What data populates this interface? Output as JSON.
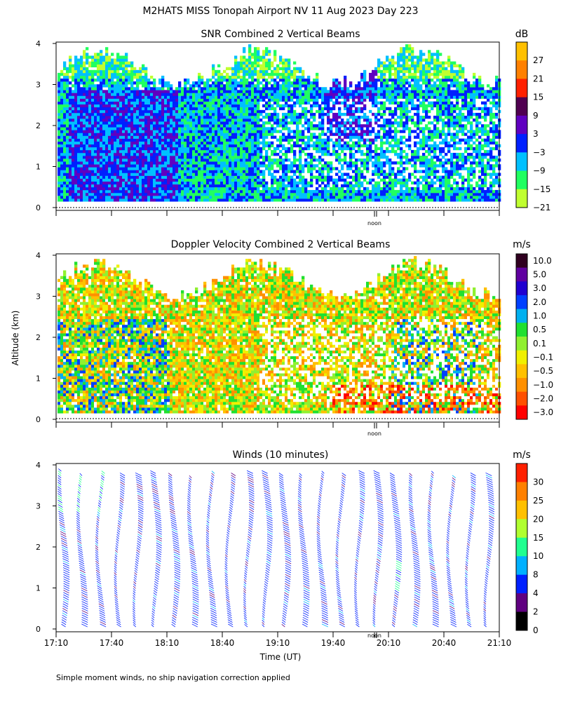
{
  "figure": {
    "title": "M2HATS MISS Tonopah Airport NV  11 Aug 2023 Day 223",
    "ylabel": "Altitude (km)",
    "xlabel": "Time (UT)",
    "footnote": "Simple moment winds, no ship navigation correction applied",
    "noon_label": "noon"
  },
  "chart_data": [
    {
      "type": "heatmap",
      "title": "SNR Combined 2 Vertical Beams",
      "ylabel": "Altitude (km)",
      "ylim": [
        0,
        4
      ],
      "yticks": [
        "0",
        "1",
        "2",
        "3",
        "4"
      ],
      "xlim": [
        "17:10",
        "21:10"
      ],
      "colorbar": {
        "unit": "dB",
        "labels": [
          "27",
          "21",
          "15",
          "9",
          "3",
          "−3",
          "−9",
          "−15",
          "−21"
        ],
        "colors": [
          "#ffc000",
          "#ff8000",
          "#ff2000",
          "#500050",
          "#6000c0",
          "#0020ff",
          "#00c0ff",
          "#20ff60",
          "#c0ff30"
        ]
      },
      "description": "Strongest SNR (-3 to 9 dB) below 3 km from 17:20 to 18:20; weaker values (-15 to -21 dB) near 3.5 km top; data gaps in mid levels after 19:10"
    },
    {
      "type": "heatmap",
      "title": "Doppler Velocity Combined 2 Vertical Beams",
      "ylabel": "Altitude (km)",
      "ylim": [
        0,
        4
      ],
      "yticks": [
        "0",
        "1",
        "2",
        "3",
        "4"
      ],
      "xlim": [
        "17:10",
        "21:10"
      ],
      "colorbar": {
        "unit": "m/s",
        "labels": [
          "10.0",
          "5.0",
          "3.0",
          "2.0",
          "1.0",
          "0.5",
          "0.1",
          "−0.1",
          "−0.5",
          "−1.0",
          "−2.0",
          "−3.0"
        ],
        "colors": [
          "#300020",
          "#6000a0",
          "#2000d0",
          "#0040ff",
          "#00b0f0",
          "#20e030",
          "#90f030",
          "#f0f000",
          "#ffc000",
          "#ff9000",
          "#ff5000",
          "#ff0000"
        ]
      },
      "description": "Mostly weak motions (-0.5 to 0.5 m/s); downward -1 to -3 m/s near the surface after 19:30; updrafts 1 to 3 m/s in columns around 17:30-18:10 and 20:00-20:40"
    },
    {
      "type": "barbs",
      "title": "Winds (10 minutes)",
      "ylabel": "Altitude (km)",
      "ylim": [
        0,
        4
      ],
      "yticks": [
        "0",
        "1",
        "2",
        "3",
        "4"
      ],
      "xlabel": "Time (UT)",
      "xticks": [
        "17:10",
        "17:40",
        "18:10",
        "18:40",
        "19:10",
        "19:40",
        "20:10",
        "20:40",
        "21:10"
      ],
      "colorbar": {
        "unit": "m/s",
        "labels": [
          "30",
          "25",
          "20",
          "15",
          "10",
          "8",
          "4",
          "2",
          "0"
        ],
        "colors": [
          "#ff2000",
          "#ff8000",
          "#ffc000",
          "#b0ff30",
          "#20ff90",
          "#00b0ff",
          "#0020ff",
          "#600080",
          "#000000"
        ]
      },
      "profile_times": [
        "17:15",
        "17:25",
        "17:35",
        "17:45",
        "17:55",
        "18:05",
        "18:15",
        "18:25",
        "18:35",
        "18:45",
        "18:55",
        "19:05",
        "19:15",
        "19:25",
        "19:35",
        "19:45",
        "19:55",
        "20:05",
        "20:15",
        "20:25",
        "20:35",
        "20:45",
        "20:55",
        "21:05"
      ],
      "description": "Winds mostly 4-8 m/s throughout 0-4 km; stronger 10-15 m/s near 3-3.5 km early in the period and near 1-1.5 km around 20:20"
    }
  ]
}
